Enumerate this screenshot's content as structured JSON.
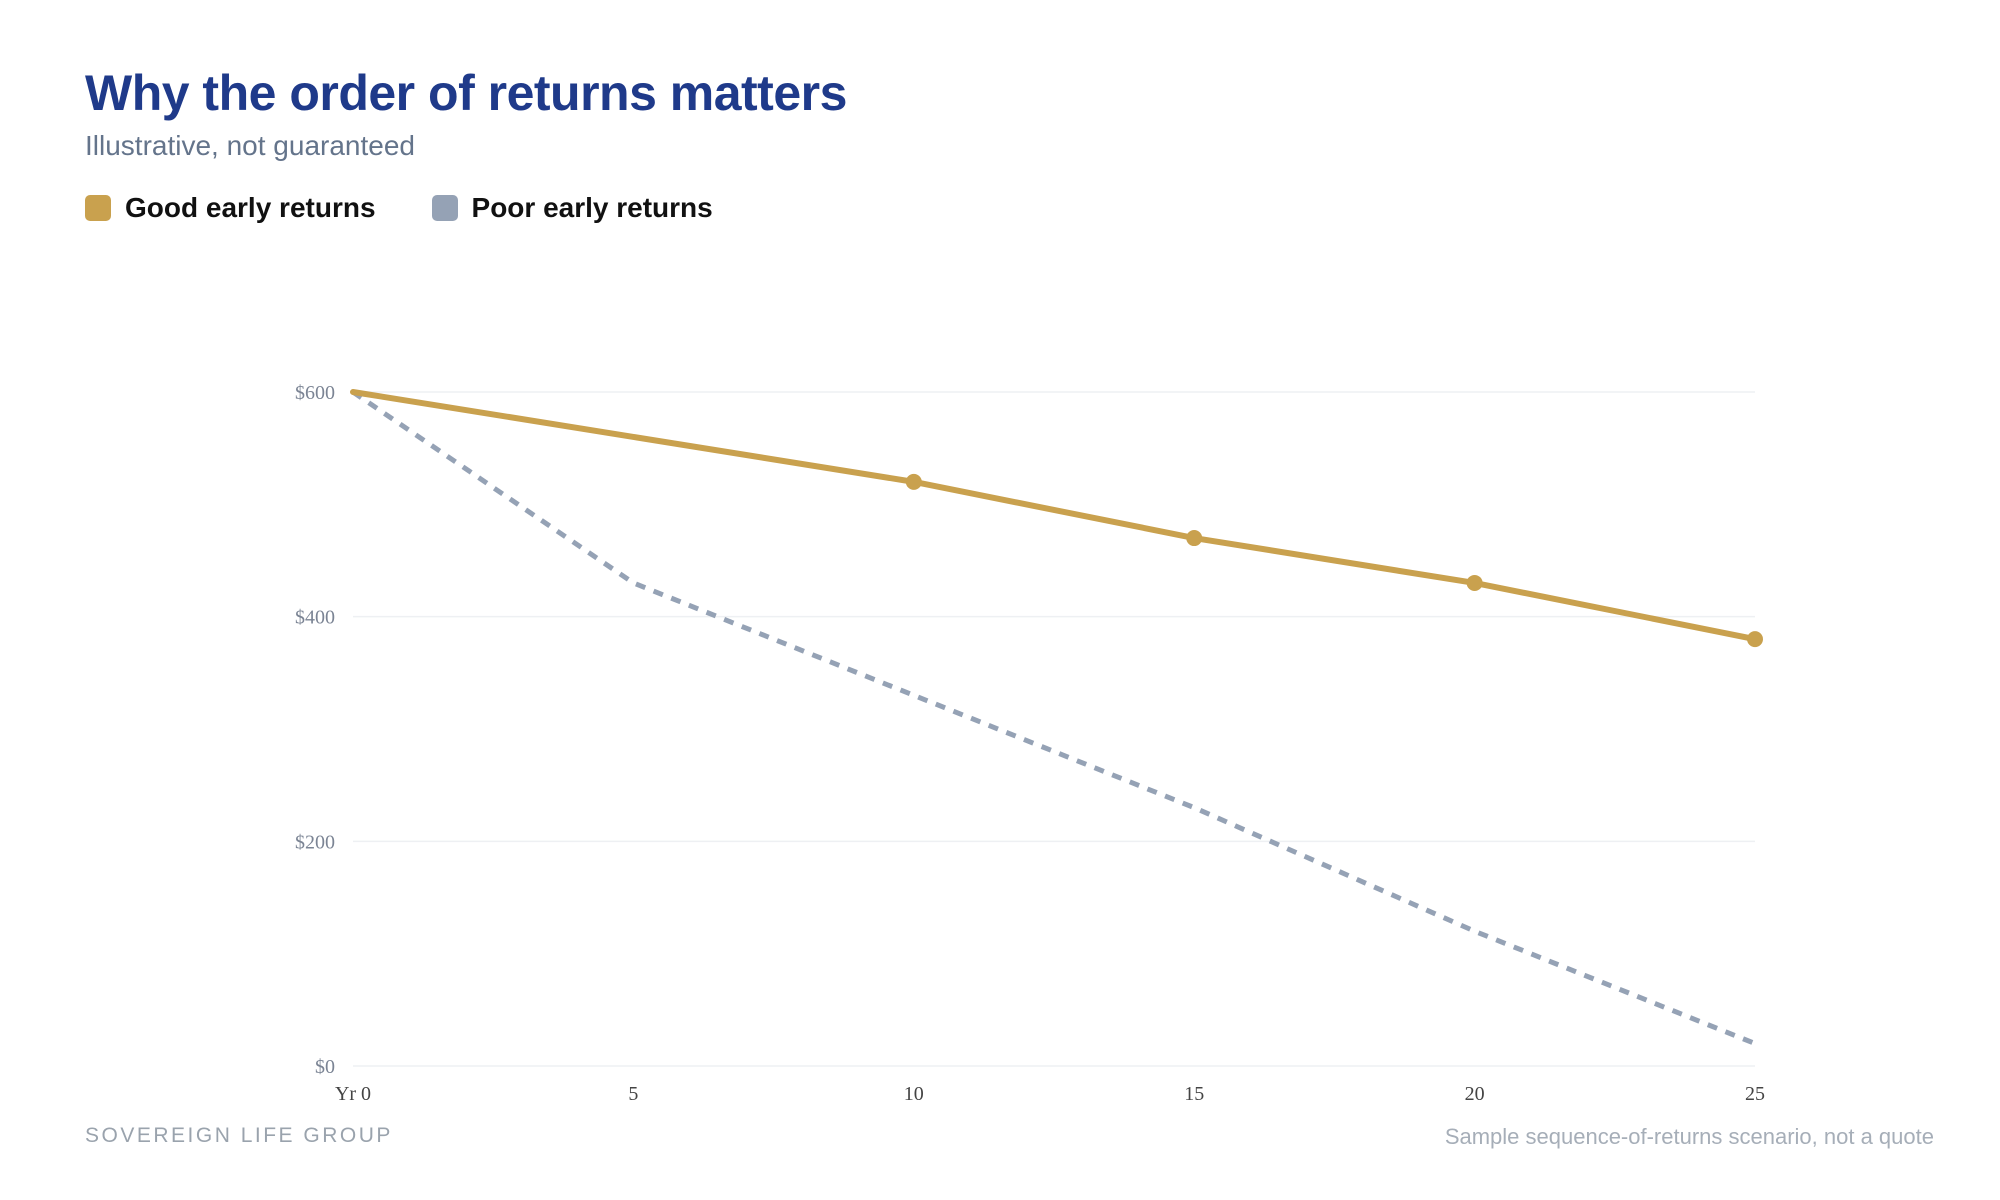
{
  "header": {
    "title": "Why the order of returns matters",
    "subtitle": "Illustrative, not guaranteed"
  },
  "legend": [
    {
      "label": "Good early returns",
      "color": "#c9a14e"
    },
    {
      "label": "Poor early returns",
      "color": "#95a2b5"
    }
  ],
  "footer": {
    "brand": "SOVEREIGN LIFE GROUP",
    "note": "Sample sequence-of-returns scenario, not a quote"
  },
  "chart_data": {
    "type": "line",
    "x": [
      0,
      5,
      10,
      15,
      20,
      25
    ],
    "x_tick_labels": [
      "Yr 0",
      "5",
      "10",
      "15",
      "20",
      "25"
    ],
    "y_ticks": [
      0,
      200,
      400,
      600
    ],
    "y_tick_labels": [
      "$0",
      "$200",
      "$400",
      "$600"
    ],
    "ylim": [
      0,
      600
    ],
    "xlim": [
      0,
      25
    ],
    "grid": true,
    "legend_position": "top-left",
    "series": [
      {
        "name": "Good early returns",
        "color": "#c9a14e",
        "style": "solid",
        "markers_at": [
          10,
          15,
          20,
          25
        ],
        "values": [
          600,
          560,
          520,
          470,
          430,
          380
        ]
      },
      {
        "name": "Poor early returns",
        "color": "#95a2b5",
        "style": "dashed",
        "markers_at": [],
        "values": [
          600,
          430,
          330,
          230,
          120,
          20
        ]
      }
    ]
  }
}
